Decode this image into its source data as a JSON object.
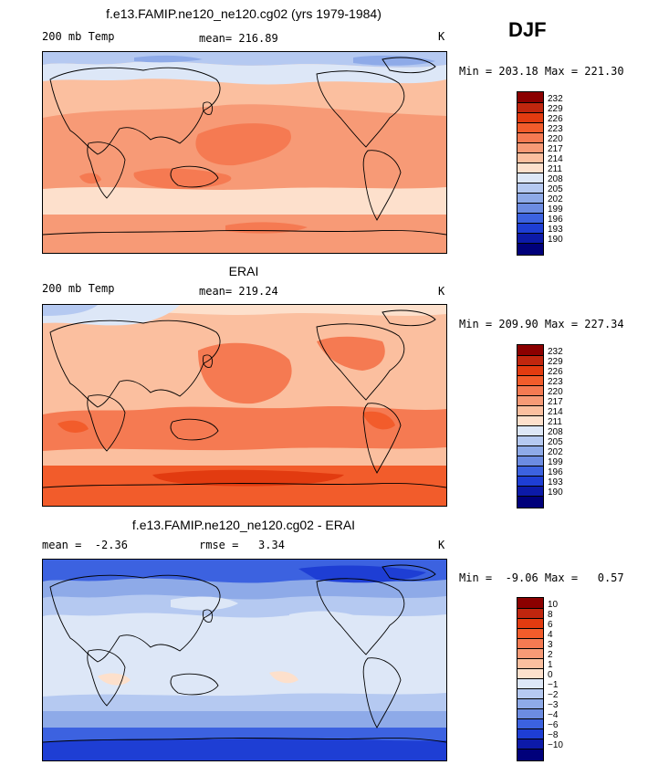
{
  "season": "DJF",
  "panels": [
    {
      "title": "f.e13.FAMIP.ne120_ne120.cg02 (yrs 1979-1984)",
      "left_label": "200 mb Temp",
      "center_label": "mean= 216.89",
      "units": "K",
      "minmax": "Min = 203.18 Max = 221.30",
      "colormap": "temp"
    },
    {
      "title": "ERAI",
      "left_label": "200 mb Temp",
      "center_label": "mean= 219.24",
      "units": "K",
      "minmax": "Min = 209.90 Max = 227.34",
      "colormap": "temp"
    },
    {
      "title": "f.e13.FAMIP.ne120_ne120.cg02 - ERAI",
      "left_label": "mean =  -2.36",
      "center_label": "rmse =   3.34",
      "units": "K",
      "minmax": "Min =  -9.06 Max =   0.57",
      "colormap": "diff"
    }
  ],
  "colorbars": {
    "temp": {
      "labels": [
        "232",
        "229",
        "226",
        "223",
        "220",
        "217",
        "214",
        "211",
        "208",
        "205",
        "202",
        "199",
        "196",
        "193",
        "190"
      ],
      "colors": [
        "#8b0000",
        "#c0260e",
        "#e23b10",
        "#f25c2b",
        "#f57a52",
        "#f79a76",
        "#fbbf9f",
        "#fde0cc",
        "#dde7f7",
        "#b5c9f1",
        "#8eaae8",
        "#6c8ce2",
        "#3c62e0",
        "#1e3ed4",
        "#0c1aa8",
        "#00007a"
      ]
    },
    "diff": {
      "labels": [
        "10",
        "8",
        "6",
        "4",
        "3",
        "2",
        "1",
        "0",
        "−1",
        "−2",
        "−3",
        "−4",
        "−6",
        "−8",
        "−10"
      ],
      "colors": [
        "#8b0000",
        "#c0260e",
        "#e23b10",
        "#f25c2b",
        "#f57a52",
        "#f79a76",
        "#fbbf9f",
        "#fde0cc",
        "#dde7f7",
        "#b5c9f1",
        "#8eaae8",
        "#6c8ce2",
        "#3c62e0",
        "#1e3ed4",
        "#0c1aa8",
        "#00007a"
      ]
    }
  }
}
